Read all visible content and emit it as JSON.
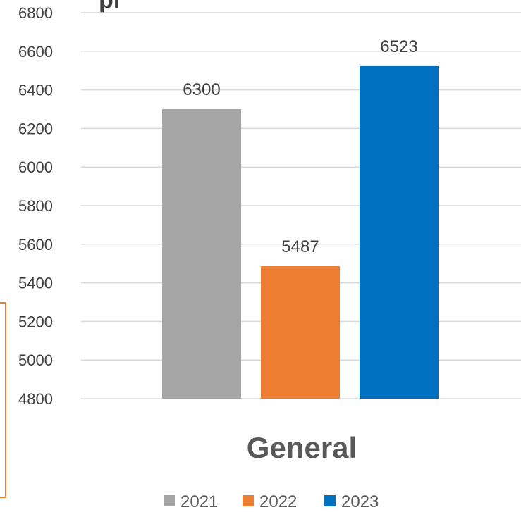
{
  "chart_data": {
    "type": "bar",
    "categories": [
      "General"
    ],
    "series": [
      {
        "name": "2021",
        "values": [
          6300
        ],
        "color": "#a5a5a5"
      },
      {
        "name": "2022",
        "values": [
          5487
        ],
        "color": "#ed7d31"
      },
      {
        "name": "2023",
        "values": [
          6523
        ],
        "color": "#0070c0"
      }
    ],
    "yticks": [
      4800,
      5000,
      5200,
      5400,
      5600,
      5800,
      6000,
      6200,
      6400,
      6600,
      6800
    ],
    "ylim": [
      4800,
      6800
    ],
    "grid": true,
    "legend_position": "bottom",
    "data_labels": true
  }
}
